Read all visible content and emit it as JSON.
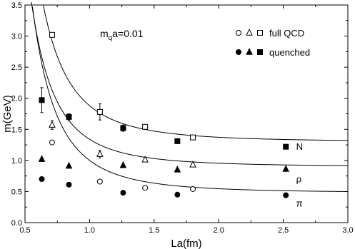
{
  "chart_data": {
    "type": "scatter",
    "xlabel": "La(fm)",
    "ylabel": "m(GeV)",
    "xlim": [
      0.5,
      3.0
    ],
    "ylim": [
      0.0,
      3.5
    ],
    "xticks": [
      0.5,
      1.0,
      1.5,
      2.0,
      2.5,
      3.0
    ],
    "yticks": [
      0.0,
      0.5,
      1.0,
      1.5,
      2.0,
      2.5,
      3.0,
      3.5
    ],
    "xtick_labels": [
      "0.5",
      "1.0",
      "1.5",
      "2.0",
      "2.5",
      "3.0"
    ],
    "ytick_labels": [
      "0.0",
      "0.5",
      "1.0",
      "1.5",
      "2.0",
      "2.5",
      "3.0",
      "3.5"
    ],
    "annotation": {
      "prefix": "m",
      "sub": "q",
      "suffix": "a=0.01"
    },
    "grid": false,
    "legend": {
      "position": "top-right",
      "full_label": "full QCD",
      "quenched_label": "quenched"
    },
    "series": [
      {
        "name": "full QCD",
        "particle": "N",
        "marker": "square-open",
        "points": [
          {
            "x": 0.71,
            "y": 3.02,
            "err": 0.0
          },
          {
            "x": 1.08,
            "y": 1.78,
            "err": 0.13
          },
          {
            "x": 1.43,
            "y": 1.54,
            "err": 0.0
          },
          {
            "x": 1.8,
            "y": 1.37,
            "err": 0.0
          }
        ]
      },
      {
        "name": "quenched",
        "particle": "N",
        "marker": "square-filled",
        "points": [
          {
            "x": 0.63,
            "y": 1.97,
            "err": 0.2
          },
          {
            "x": 0.84,
            "y": 1.7,
            "err": 0.05
          },
          {
            "x": 1.26,
            "y": 1.52,
            "err": 0.05
          },
          {
            "x": 1.68,
            "y": 1.31,
            "err": 0.0
          },
          {
            "x": 2.52,
            "y": 1.22,
            "err": 0.0
          }
        ]
      },
      {
        "name": "full QCD",
        "particle": "ρ",
        "marker": "triangle-open",
        "points": [
          {
            "x": 0.71,
            "y": 1.57,
            "err": 0.07
          },
          {
            "x": 1.08,
            "y": 1.1,
            "err": 0.06
          },
          {
            "x": 1.43,
            "y": 1.01,
            "err": 0.0
          },
          {
            "x": 1.8,
            "y": 0.93,
            "err": 0.0
          }
        ]
      },
      {
        "name": "quenched",
        "particle": "ρ",
        "marker": "triangle-filled",
        "points": [
          {
            "x": 0.63,
            "y": 1.02,
            "err": 0.0
          },
          {
            "x": 0.84,
            "y": 0.91,
            "err": 0.0
          },
          {
            "x": 1.26,
            "y": 0.92,
            "err": 0.0
          },
          {
            "x": 1.68,
            "y": 0.85,
            "err": 0.0
          },
          {
            "x": 2.52,
            "y": 0.86,
            "err": 0.0
          }
        ]
      },
      {
        "name": "full QCD",
        "particle": "π",
        "marker": "circle-open",
        "points": [
          {
            "x": 0.71,
            "y": 1.29,
            "err": 0.0
          },
          {
            "x": 1.08,
            "y": 0.66,
            "err": 0.0
          },
          {
            "x": 1.43,
            "y": 0.56,
            "err": 0.0
          },
          {
            "x": 1.8,
            "y": 0.54,
            "err": 0.0
          }
        ]
      },
      {
        "name": "quenched",
        "particle": "π",
        "marker": "circle-filled",
        "points": [
          {
            "x": 0.63,
            "y": 0.7,
            "err": 0.0
          },
          {
            "x": 0.84,
            "y": 0.61,
            "err": 0.0
          },
          {
            "x": 1.26,
            "y": 0.48,
            "err": 0.0
          },
          {
            "x": 1.68,
            "y": 0.45,
            "err": 0.0
          },
          {
            "x": 2.52,
            "y": 0.44,
            "err": 0.0
          }
        ]
      }
    ],
    "fit_curves": [
      {
        "particle": "N",
        "m_inf": 1.3,
        "c": 0.58
      },
      {
        "particle": "ρ",
        "m_inf": 0.9,
        "c": 0.44
      },
      {
        "particle": "π",
        "m_inf": 0.48,
        "c": 0.52
      }
    ],
    "curve_labels": [
      {
        "text": "N",
        "x": 2.6,
        "y": 1.17
      },
      {
        "text": "ρ",
        "x": 2.6,
        "y": 0.65
      },
      {
        "text": "π",
        "x": 2.6,
        "y": 0.26
      }
    ]
  }
}
